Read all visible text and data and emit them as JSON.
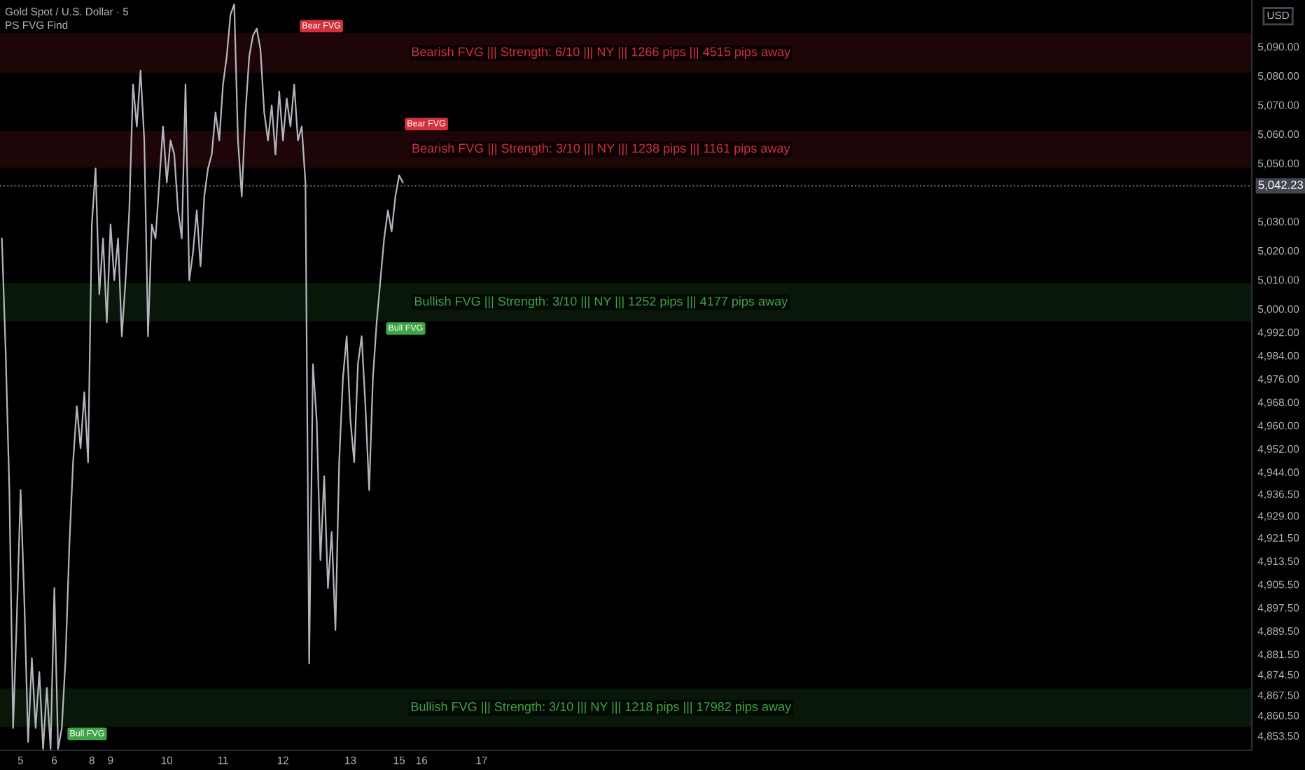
{
  "chart_data": {
    "type": "line",
    "title": "Gold Spot / U.S. Dollar · 5",
    "subtitle": "PS FVG Find",
    "ylabel": "USD",
    "categories": [
      null,
      null,
      null,
      null,
      null,
      "5",
      null,
      null,
      null,
      null,
      null,
      null,
      null,
      null,
      "6",
      null,
      null,
      null,
      null,
      null,
      null,
      null,
      null,
      null,
      "8",
      null,
      null,
      null,
      null,
      "9",
      null,
      null,
      null,
      null,
      null,
      null,
      null,
      null,
      null,
      null,
      null,
      null,
      null,
      null,
      "10",
      null,
      null,
      null,
      null,
      null,
      null,
      null,
      null,
      null,
      null,
      null,
      null,
      null,
      null,
      "11",
      null,
      null,
      null,
      null,
      null,
      null,
      null,
      null,
      null,
      null,
      null,
      null,
      null,
      null,
      null,
      "12",
      null,
      null,
      null,
      null,
      null,
      null,
      null,
      null,
      null,
      null,
      null,
      null,
      null,
      null,
      null,
      null,
      null,
      "13",
      null,
      null,
      null,
      null,
      null,
      null,
      null,
      null,
      null,
      null,
      null,
      null,
      "15",
      null,
      null,
      null,
      null,
      null,
      "16",
      null,
      null,
      null,
      null,
      null,
      null,
      null,
      null,
      null,
      null,
      null,
      null,
      null,
      null,
      null,
      "17",
      null,
      null,
      null,
      null,
      null,
      null,
      null,
      null,
      null,
      null,
      null,
      null,
      null,
      null,
      null,
      null,
      null,
      null,
      null,
      null,
      null,
      null,
      null,
      null,
      null,
      null,
      null,
      null,
      null,
      null,
      null,
      null,
      null,
      null,
      null,
      null,
      null,
      null,
      null,
      null,
      null,
      null,
      null,
      null,
      null,
      null,
      null,
      null,
      null,
      null,
      null,
      null,
      null,
      null,
      null,
      null,
      null,
      null,
      null,
      null,
      null,
      null,
      null,
      null,
      null,
      null,
      null,
      null,
      null,
      null,
      null,
      null,
      null,
      null,
      null,
      null,
      null,
      null,
      null,
      null,
      null,
      null,
      null,
      null,
      null,
      null,
      null,
      null,
      null,
      null,
      null,
      null,
      null,
      null,
      null,
      null,
      null,
      null,
      null,
      null,
      null,
      null,
      null,
      null,
      null,
      null,
      null,
      null,
      null,
      null,
      null,
      null,
      null,
      null,
      null,
      null,
      null,
      null,
      null,
      null,
      null,
      null,
      null,
      null,
      null,
      null,
      null,
      null,
      null,
      null,
      null,
      null,
      null,
      null,
      null,
      null,
      null,
      null,
      null,
      null,
      null,
      null,
      null,
      null,
      null,
      null,
      null,
      null,
      null,
      null,
      null,
      null,
      null,
      null,
      null,
      null,
      null,
      null,
      null,
      null,
      null,
      null,
      null,
      null,
      null,
      null,
      null,
      null,
      null,
      null,
      null,
      null,
      null,
      null,
      null,
      null,
      null,
      null,
      null,
      null,
      null,
      null,
      null,
      null,
      null,
      null,
      null,
      null,
      null,
      null,
      null,
      null,
      null,
      null,
      null,
      null,
      null,
      null,
      null,
      null,
      null,
      null,
      null,
      null,
      null
    ],
    "series": [
      {
        "color": "#b2b5be",
        "values": [
          5024.2,
          4985.8,
          4937.8,
          4856.2,
          4894.6,
          4937.8,
          4899.4,
          4851.4,
          4880.2,
          4856.2,
          4875.4,
          4849.0,
          4870.0,
          4849.0,
          4904.2,
          4849.0,
          4856.2,
          4880.2,
          4918.6,
          4947.4,
          4966.6,
          4952.2,
          4971.4,
          4947.4,
          5029.0,
          5048.2,
          5005.0,
          5024.2,
          4995.4,
          5029.0,
          5009.8,
          5024.2,
          4990.6,
          5009.8,
          5033.8,
          5077.0,
          5062.6,
          5081.8,
          5057.8,
          4990.6,
          5029.0,
          5024.2,
          5043.4,
          5062.6,
          5043.4,
          5057.8,
          5053.0,
          5033.8,
          5024.2,
          5077.0,
          5009.8,
          5019.4,
          5033.8,
          5014.6,
          5038.6,
          5048.2,
          5053.0,
          5067.4,
          5057.8,
          5077.0,
          5086.6,
          5101.0,
          5104.5,
          5057.8,
          5038.6,
          5067.4,
          5086.6,
          5093.8,
          5096.2,
          5089.0,
          5067.4,
          5057.8,
          5069.8,
          5053.0,
          5074.6,
          5057.8,
          5072.2,
          5062.6,
          5077.0,
          5057.8,
          5062.6,
          5043.4,
          4878.3,
          4981.0,
          4961.8,
          4913.8,
          4942.6,
          4904.2,
          4923.4,
          4889.8,
          4947.4,
          4976.2,
          4990.6,
          4961.8,
          4947.4,
          4981.0,
          4990.6,
          4966.6,
          4937.8,
          4976.2,
          4995.4,
          5009.8,
          5024.2,
          5033.8,
          5026.6,
          5038.6,
          5045.8,
          5043.4,
          null,
          null,
          null,
          null,
          null,
          null,
          null,
          null,
          null,
          null,
          null,
          null,
          null,
          null,
          null,
          null,
          null,
          null,
          null,
          null,
          null,
          null,
          null,
          null,
          null,
          null,
          null,
          null,
          null,
          null,
          null,
          null,
          null,
          null,
          null,
          null,
          null,
          null,
          null,
          null,
          null,
          null,
          null,
          null,
          null,
          null,
          null,
          null,
          null,
          null,
          null,
          null,
          null,
          null,
          null,
          null,
          null,
          null,
          null,
          null,
          null,
          null,
          null,
          null,
          null,
          null,
          null,
          null,
          null,
          null,
          null,
          null,
          null,
          null,
          null,
          null,
          null,
          null,
          null,
          null,
          null,
          null,
          null,
          null,
          null,
          null,
          null,
          null,
          null,
          null,
          null,
          null,
          null,
          null,
          null,
          null,
          null,
          null,
          null,
          null,
          null,
          null,
          null,
          null,
          null,
          null,
          null,
          null,
          null,
          null,
          null,
          null,
          null,
          null,
          null,
          null,
          null,
          null,
          null,
          null,
          null,
          null,
          null,
          null,
          null,
          null,
          null,
          null,
          null,
          null,
          null,
          null,
          null,
          null,
          null,
          null,
          null,
          null,
          null,
          null,
          null,
          null,
          null,
          null,
          null,
          null,
          null,
          null,
          null,
          null,
          null,
          null,
          null,
          null,
          null,
          null,
          null,
          null,
          null,
          null,
          null,
          null,
          null,
          null,
          null,
          null,
          null,
          null,
          null,
          null,
          null,
          null,
          null,
          null,
          null,
          null,
          null,
          null,
          null,
          null,
          null,
          null,
          null,
          null,
          null,
          null,
          null,
          null,
          null,
          null,
          null,
          null,
          null,
          null,
          null,
          null,
          null,
          null,
          null,
          null,
          null,
          null,
          null,
          null,
          null,
          null,
          null,
          null,
          null,
          null,
          null,
          null,
          null,
          null,
          null,
          null,
          null,
          null,
          null,
          null,
          null,
          null,
          null,
          null,
          null,
          null
        ]
      }
    ],
    "ylim": [
      4848.5,
      5106
    ],
    "yticks": [
      {
        "value": 5090,
        "label": "5,090.00"
      },
      {
        "value": 5080,
        "label": "5,080.00"
      },
      {
        "value": 5070,
        "label": "5,070.00"
      },
      {
        "value": 5060,
        "label": "5,060.00"
      },
      {
        "value": 5050,
        "label": "5,050.00"
      },
      {
        "value": 5030,
        "label": "5,030.00"
      },
      {
        "value": 5020,
        "label": "5,020.00"
      },
      {
        "value": 5010,
        "label": "5,010.00"
      },
      {
        "value": 5000,
        "label": "5,000.00"
      },
      {
        "value": 4992,
        "label": "4,992.00"
      },
      {
        "value": 4984,
        "label": "4,984.00"
      },
      {
        "value": 4976,
        "label": "4,976.00"
      },
      {
        "value": 4968,
        "label": "4,968.00"
      },
      {
        "value": 4960,
        "label": "4,960.00"
      },
      {
        "value": 4952,
        "label": "4,952.00"
      },
      {
        "value": 4944,
        "label": "4,944.00"
      },
      {
        "value": 4936.5,
        "label": "4,936.50"
      },
      {
        "value": 4929,
        "label": "4,929.00"
      },
      {
        "value": 4921.5,
        "label": "4,921.50"
      },
      {
        "value": 4913.5,
        "label": "4,913.50"
      },
      {
        "value": 4905.5,
        "label": "4,905.50"
      },
      {
        "value": 4897.5,
        "label": "4,897.50"
      },
      {
        "value": 4889.5,
        "label": "4,889.50"
      },
      {
        "value": 4881.5,
        "label": "4,881.50"
      },
      {
        "value": 4874.5,
        "label": "4,874.50"
      },
      {
        "value": 4867.5,
        "label": "4,867.50"
      },
      {
        "value": 4860.5,
        "label": "4,860.50"
      },
      {
        "value": 4853.5,
        "label": "4,853.50"
      }
    ],
    "ref_lines": [
      {
        "axis": "y",
        "value": 5042.23,
        "label": "5,042.23",
        "color": "#787b86",
        "line_style": "dotted"
      }
    ],
    "bands": [
      {
        "axis": "y",
        "from": 5081.4,
        "to": 5094.3,
        "label": "Bearish FVG ||| Strength: 6/10 ||| NY ||| 1266 pips ||| 4515 pips away",
        "color": "#d1303c"
      },
      {
        "axis": "y",
        "from": 5048.8,
        "to": 5060.7,
        "label": "Bearish FVG ||| Strength: 3/10 ||| NY ||| 1238 pips ||| 1161 pips away",
        "color": "#d1303c"
      },
      {
        "axis": "y",
        "from": 4996.0,
        "to": 5008.5,
        "label": "Bullish FVG ||| Strength: 3/10 ||| NY ||| 1252 pips ||| 4177 pips away",
        "color": "#3fa545"
      },
      {
        "axis": "y",
        "from": 4856.9,
        "to": 4869.4,
        "label": "Bullish FVG ||| Strength: 3/10 ||| NY ||| 1218 pips ||| 17982 pips away",
        "color": "#3fa545"
      }
    ],
    "annotations": [
      "Bear FVG",
      "Bear FVG",
      "Bull FVG",
      "Bull FVG"
    ]
  }
}
